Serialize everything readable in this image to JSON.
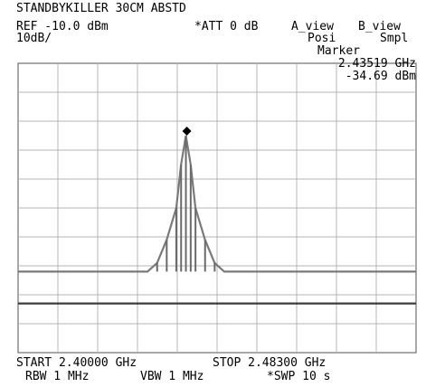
{
  "header": {
    "title": "STANDBYKILLER 30CM ABSTD",
    "ref": "REF -10.0 dBm",
    "att": "*ATT 0 dB",
    "a_view": "A_view",
    "b_view": "B_view",
    "scale": "10dB/",
    "a_mode": "Posi",
    "b_mode": "Smpl"
  },
  "marker": {
    "label": "Marker",
    "freq": "2.43519 GHz",
    "level": "-34.69 dBm"
  },
  "footer": {
    "start": "START 2.40000 GHz",
    "stop": "STOP 2.48300 GHz",
    "rbw": "RBW 1 MHz",
    "vbw": "VBW 1 MHz",
    "swp": "*SWP 10 s"
  },
  "chart_data": {
    "type": "line",
    "x_unit": "GHz",
    "y_unit": "dBm",
    "xlim": [
      2.4,
      2.483
    ],
    "ylim": [
      -110,
      -10
    ],
    "grid": true,
    "series": [
      {
        "x": [
          2.4,
          2.42,
          2.427,
          2.429,
          2.431,
          2.433,
          2.434,
          2.435,
          2.436,
          2.437,
          2.439,
          2.441,
          2.443,
          2.445,
          2.46,
          2.483
        ],
        "y": [
          -82,
          -82,
          -82,
          -79,
          -71,
          -60,
          -45,
          -35,
          -45,
          -60,
          -71,
          -79,
          -82,
          -82,
          -82,
          -82
        ]
      },
      {
        "x": [
          2.4,
          2.483
        ],
        "y": [
          -93,
          -93
        ]
      }
    ],
    "marker_point": {
      "x": 2.43519,
      "y": -34.69
    }
  }
}
